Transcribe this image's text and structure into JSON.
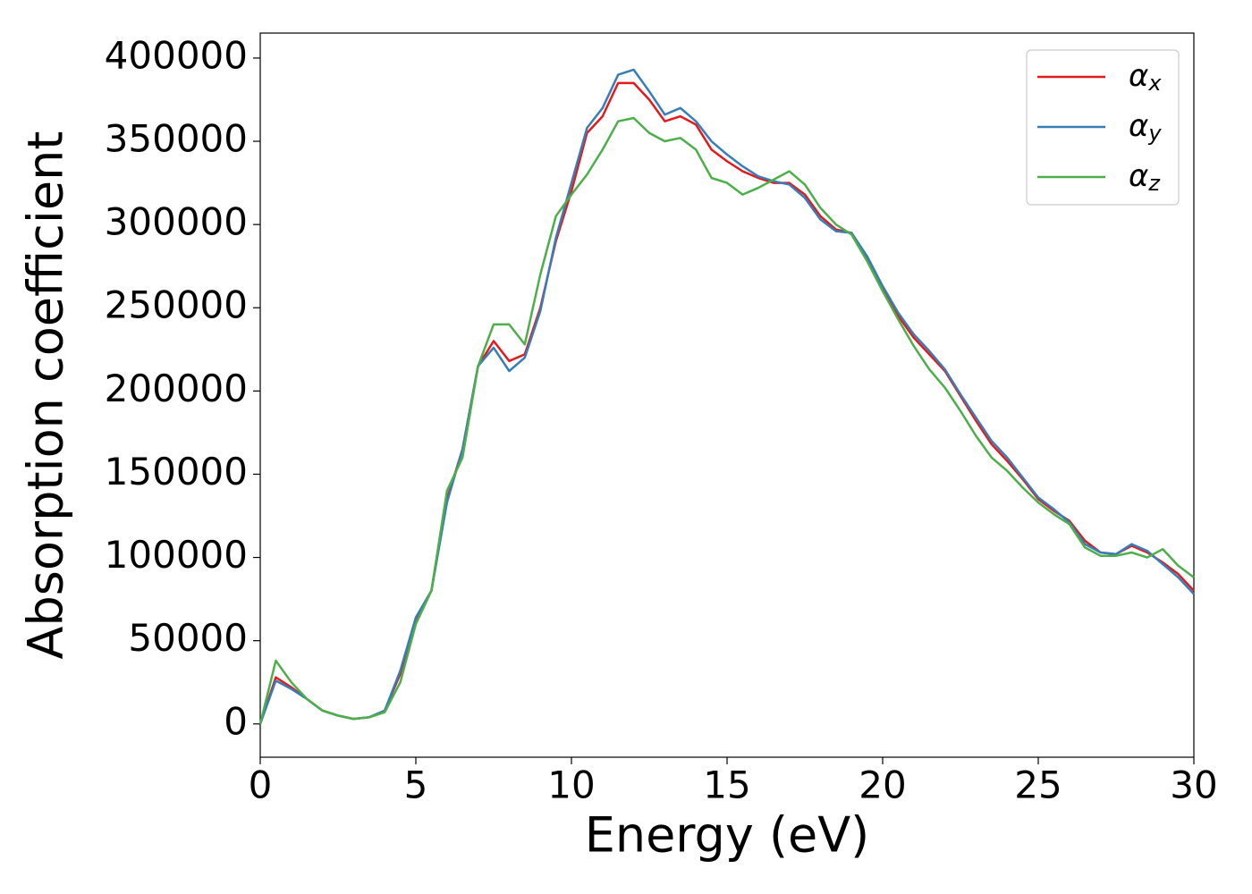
{
  "chart_data": {
    "type": "line",
    "xlabel": "Energy (eV)",
    "ylabel": "Absorption coefficient",
    "x": [
      0,
      0.5,
      1,
      1.5,
      2,
      2.5,
      3,
      3.5,
      4,
      4.5,
      5,
      5.5,
      6,
      6.5,
      7,
      7.5,
      8,
      8.5,
      9,
      9.5,
      10,
      10.5,
      11,
      11.5,
      12,
      12.5,
      13,
      13.5,
      14,
      14.5,
      15,
      15.5,
      16,
      16.5,
      17,
      17.5,
      18,
      18.5,
      19,
      19.5,
      20,
      20.5,
      21,
      21.5,
      22,
      22.5,
      23,
      23.5,
      24,
      24.5,
      25,
      25.5,
      26,
      26.5,
      27,
      27.5,
      28,
      28.5,
      29,
      29.5,
      30
    ],
    "series": [
      {
        "name": "αx",
        "color": "#e41a1c",
        "values": [
          0,
          28000,
          22000,
          15000,
          8000,
          5000,
          3000,
          4000,
          8000,
          30000,
          63000,
          80000,
          135000,
          165000,
          215000,
          230000,
          218000,
          222000,
          250000,
          290000,
          320000,
          355000,
          365000,
          385000,
          385000,
          375000,
          362000,
          365000,
          360000,
          345000,
          338000,
          332000,
          328000,
          325000,
          325000,
          318000,
          305000,
          297000,
          295000,
          280000,
          262000,
          245000,
          232000,
          222000,
          212000,
          197000,
          182000,
          168000,
          158000,
          147000,
          135000,
          128000,
          122000,
          110000,
          103000,
          102000,
          107000,
          103000,
          97000,
          90000,
          80000
        ]
      },
      {
        "name": "αy",
        "color": "#377eb8",
        "values": [
          0,
          26000,
          21000,
          15000,
          8000,
          5000,
          3000,
          4000,
          8000,
          32000,
          64000,
          80000,
          133000,
          165000,
          215000,
          226000,
          212000,
          220000,
          248000,
          292000,
          325000,
          358000,
          370000,
          390000,
          393000,
          380000,
          366000,
          370000,
          362000,
          350000,
          342000,
          335000,
          329000,
          326000,
          324000,
          316000,
          303000,
          296000,
          295000,
          281000,
          263000,
          247000,
          234000,
          224000,
          213000,
          198000,
          184000,
          170000,
          160000,
          148000,
          136000,
          129000,
          121000,
          108000,
          103000,
          102000,
          108000,
          104000,
          96000,
          88000,
          78000
        ]
      },
      {
        "name": "αz",
        "color": "#4daf4a",
        "values": [
          0,
          38000,
          25000,
          15000,
          8000,
          5000,
          3000,
          4000,
          7000,
          25000,
          60000,
          80000,
          140000,
          160000,
          215000,
          240000,
          240000,
          228000,
          270000,
          305000,
          318000,
          330000,
          345000,
          362000,
          364000,
          355000,
          350000,
          352000,
          345000,
          328000,
          325000,
          318000,
          322000,
          327000,
          332000,
          324000,
          310000,
          300000,
          294000,
          278000,
          260000,
          243000,
          227000,
          213000,
          202000,
          188000,
          173000,
          160000,
          152000,
          142000,
          133000,
          126000,
          120000,
          106000,
          101000,
          101000,
          103000,
          100000,
          105000,
          95000,
          88000
        ]
      }
    ],
    "xlim": [
      0,
      30
    ],
    "xticks": [
      0,
      5,
      10,
      15,
      20,
      25,
      30
    ],
    "ylim": [
      -20000,
      415000
    ],
    "yticks": [
      0,
      50000,
      100000,
      150000,
      200000,
      250000,
      300000,
      350000,
      400000
    ],
    "legend": "upper right",
    "grid": false
  }
}
